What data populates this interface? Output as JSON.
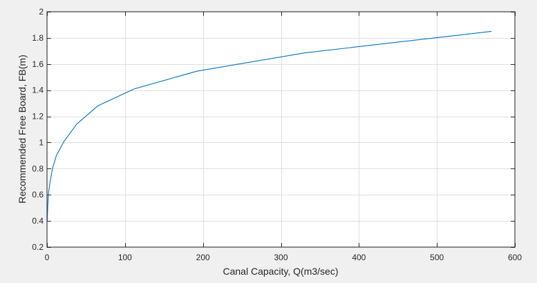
{
  "chart_data": {
    "type": "line",
    "title": "",
    "xlabel": "Canal Capacity, Q(m3/sec)",
    "ylabel": "Recommended Free Board, FB(m)",
    "xlim": [
      0,
      600
    ],
    "ylim": [
      0.2,
      2
    ],
    "xticks": [
      0,
      100,
      200,
      300,
      400,
      500,
      600
    ],
    "yticks": [
      0.2,
      0.4,
      0.6,
      0.8,
      1,
      1.2,
      1.4,
      1.6,
      1.8,
      2
    ],
    "grid": true,
    "colors": {
      "series": "#0072bd",
      "background": "#f0f0f0",
      "plot_area": "#ffffff",
      "grid": "#dfdfdf",
      "axis": "#262626"
    },
    "series": [
      {
        "x": [
          0.3,
          1,
          2,
          4,
          7,
          12,
          22,
          38,
          65,
          112,
          192,
          330,
          570
        ],
        "y": [
          0.4,
          0.52,
          0.62,
          0.7,
          0.8,
          0.9,
          1.01,
          1.14,
          1.28,
          1.41,
          1.545,
          1.685,
          1.85
        ]
      }
    ]
  }
}
